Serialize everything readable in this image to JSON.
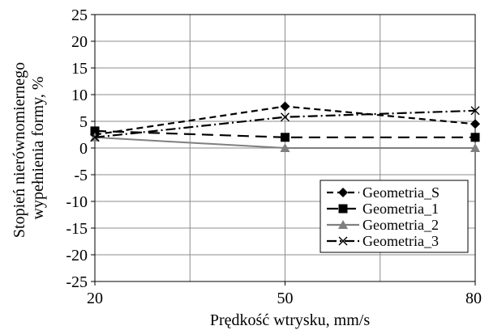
{
  "chart_data": {
    "type": "line",
    "xlabel": "Prędkość wtrysku, mm/s",
    "ylabel_lines": [
      "Stopień nierównomiernego",
      "wypełnienia formy, %"
    ],
    "x_categories": [
      20,
      50,
      80
    ],
    "x_ticks": [
      "20",
      "50",
      "80"
    ],
    "ylim": [
      -25,
      25
    ],
    "y_ticks": [
      25,
      20,
      15,
      10,
      5,
      0,
      -5,
      -10,
      -15,
      -20,
      -25
    ],
    "y_tick_labels": [
      "25",
      "20",
      "15",
      "10",
      "5",
      "0",
      "-5",
      "-10",
      "-15",
      "-20",
      "-25"
    ],
    "grid": true,
    "legend_position": "bottom-right",
    "series": [
      {
        "name": "Geometria_S",
        "values": [
          2.5,
          7.8,
          4.5
        ],
        "color": "#000000",
        "marker": "diamond",
        "dash": "8,5"
      },
      {
        "name": "Geometria_1",
        "values": [
          3.2,
          2.0,
          2.0
        ],
        "color": "#000000",
        "marker": "square",
        "dash": "14,8"
      },
      {
        "name": "Geometria_2",
        "values": [
          2.0,
          0.0,
          0.0
        ],
        "color": "#7f7f7f",
        "marker": "triangle",
        "dash": ""
      },
      {
        "name": "Geometria_3",
        "values": [
          2.0,
          5.8,
          7.0
        ],
        "color": "#000000",
        "marker": "x",
        "dash": "12,4,2,4"
      }
    ]
  }
}
